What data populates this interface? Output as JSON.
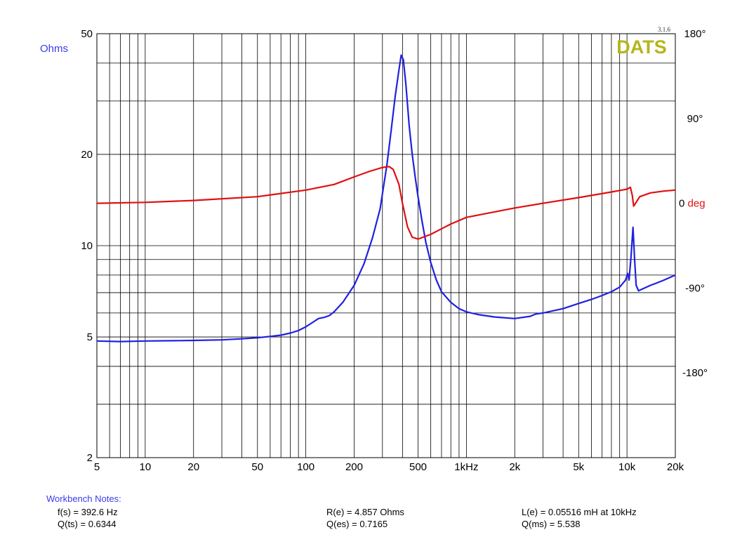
{
  "brand": {
    "logo": "DATS",
    "version": "3.1.6",
    "logo_color": "#b5b51a"
  },
  "notes": {
    "title": "Workbench Notes:",
    "col1": [
      "f(s) = 392.6 Hz",
      "Q(ts) = 0.6344"
    ],
    "col2": [
      "R(e) = 4.857 Ohms",
      "Q(es) = 0.7165"
    ],
    "col3": [
      "L(e) = 0.05516 mH at 10kHz",
      "Q(ms) = 5.538"
    ]
  },
  "chart_data": {
    "type": "line",
    "xscale": "log",
    "yscale": "log",
    "grid": true,
    "xlim": [
      5,
      20000
    ],
    "ylim": [
      2,
      50
    ],
    "y2lim": [
      -270,
      180
    ],
    "xticks": [
      {
        "value": 5,
        "label": "5"
      },
      {
        "value": 10,
        "label": "10"
      },
      {
        "value": 20,
        "label": "20"
      },
      {
        "value": 50,
        "label": "50"
      },
      {
        "value": 100,
        "label": "100"
      },
      {
        "value": 200,
        "label": "200"
      },
      {
        "value": 500,
        "label": "500"
      },
      {
        "value": 1000,
        "label": "1kHz"
      },
      {
        "value": 2000,
        "label": "2k"
      },
      {
        "value": 5000,
        "label": "5k"
      },
      {
        "value": 10000,
        "label": "10k"
      },
      {
        "value": 20000,
        "label": "20k"
      }
    ],
    "ylabel": "Ohms",
    "yticks": [
      {
        "value": 2,
        "label": "2"
      },
      {
        "value": 5,
        "label": "5"
      },
      {
        "value": 10,
        "label": "10"
      },
      {
        "value": 20,
        "label": "20"
      },
      {
        "value": 50,
        "label": "50"
      }
    ],
    "y2label_prefix": "0",
    "y2label": "deg",
    "y2ticks": [
      {
        "value": 180,
        "label": "180°"
      },
      {
        "value": 90,
        "label": "90°"
      },
      {
        "value": 0,
        "label": "0"
      },
      {
        "value": -90,
        "label": "-90°"
      },
      {
        "value": -180,
        "label": "-180°"
      }
    ],
    "series": [
      {
        "color": "#2020e0",
        "axis": "left",
        "points": [
          [
            5,
            4.85
          ],
          [
            7,
            4.83
          ],
          [
            10,
            4.85
          ],
          [
            15,
            4.86
          ],
          [
            20,
            4.87
          ],
          [
            30,
            4.89
          ],
          [
            40,
            4.93
          ],
          [
            50,
            4.97
          ],
          [
            60,
            5.02
          ],
          [
            70,
            5.07
          ],
          [
            80,
            5.15
          ],
          [
            90,
            5.25
          ],
          [
            100,
            5.4
          ],
          [
            110,
            5.58
          ],
          [
            120,
            5.75
          ],
          [
            130,
            5.8
          ],
          [
            140,
            5.88
          ],
          [
            150,
            6.05
          ],
          [
            170,
            6.5
          ],
          [
            200,
            7.4
          ],
          [
            230,
            8.7
          ],
          [
            260,
            10.6
          ],
          [
            290,
            13.2
          ],
          [
            320,
            18.5
          ],
          [
            340,
            24
          ],
          [
            360,
            31
          ],
          [
            380,
            38
          ],
          [
            392.6,
            42.5
          ],
          [
            405,
            41
          ],
          [
            420,
            34
          ],
          [
            440,
            25
          ],
          [
            460,
            20
          ],
          [
            480,
            16.8
          ],
          [
            500,
            14.5
          ],
          [
            530,
            12
          ],
          [
            560,
            10.2
          ],
          [
            600,
            8.8
          ],
          [
            650,
            7.7
          ],
          [
            700,
            7.05
          ],
          [
            800,
            6.5
          ],
          [
            900,
            6.2
          ],
          [
            1000,
            6.05
          ],
          [
            1200,
            5.92
          ],
          [
            1500,
            5.82
          ],
          [
            2000,
            5.75
          ],
          [
            2500,
            5.85
          ],
          [
            2700,
            5.95
          ],
          [
            3000,
            6.0
          ],
          [
            4000,
            6.2
          ],
          [
            5000,
            6.45
          ],
          [
            6000,
            6.65
          ],
          [
            7000,
            6.85
          ],
          [
            8000,
            7.05
          ],
          [
            9000,
            7.3
          ],
          [
            9800,
            7.7
          ],
          [
            10100,
            8.1
          ],
          [
            10300,
            7.7
          ],
          [
            10600,
            9.2
          ],
          [
            10900,
            11.5
          ],
          [
            11150,
            9.0
          ],
          [
            11400,
            7.4
          ],
          [
            11800,
            7.1
          ],
          [
            12500,
            7.2
          ],
          [
            14000,
            7.4
          ],
          [
            15000,
            7.5
          ],
          [
            17000,
            7.7
          ],
          [
            20000,
            8.0
          ]
        ]
      },
      {
        "color": "#e01010",
        "axis": "right",
        "points": [
          [
            5,
            0
          ],
          [
            10,
            1
          ],
          [
            20,
            3
          ],
          [
            50,
            7
          ],
          [
            100,
            14
          ],
          [
            150,
            20
          ],
          [
            200,
            28
          ],
          [
            250,
            34
          ],
          [
            300,
            38
          ],
          [
            330,
            39
          ],
          [
            350,
            36
          ],
          [
            380,
            20
          ],
          [
            400,
            0
          ],
          [
            430,
            -25
          ],
          [
            460,
            -36
          ],
          [
            500,
            -38
          ],
          [
            600,
            -33
          ],
          [
            800,
            -22
          ],
          [
            1000,
            -15
          ],
          [
            2000,
            -5
          ],
          [
            3000,
            0
          ],
          [
            5000,
            6
          ],
          [
            8000,
            12
          ],
          [
            10000,
            15
          ],
          [
            10500,
            17
          ],
          [
            10800,
            8
          ],
          [
            11000,
            -3
          ],
          [
            11300,
            0
          ],
          [
            12000,
            7
          ],
          [
            14000,
            11
          ],
          [
            17000,
            13
          ],
          [
            20000,
            14
          ]
        ]
      }
    ]
  }
}
